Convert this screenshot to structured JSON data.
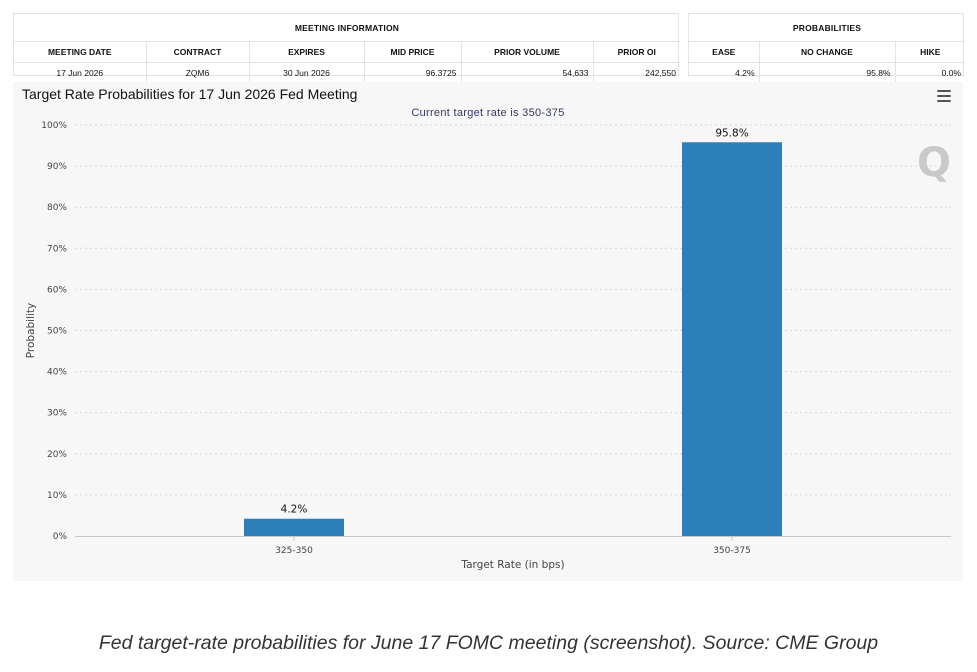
{
  "meeting_info": {
    "title": "MEETING INFORMATION",
    "headers": [
      "MEETING DATE",
      "CONTRACT",
      "EXPIRES",
      "MID PRICE",
      "PRIOR VOLUME",
      "PRIOR OI"
    ],
    "row": [
      "17 Jun 2026",
      "ZQM6",
      "30 Jun 2026",
      "96.3725",
      "54,633",
      "242,550"
    ]
  },
  "probabilities": {
    "title": "PROBABILITIES",
    "headers": [
      "EASE",
      "NO CHANGE",
      "HIKE"
    ],
    "row": [
      "4.2%",
      "95.8%",
      "0.0%"
    ]
  },
  "chart_menu_icon": "hamburger-menu-icon",
  "watermark": "Q",
  "chart_data": {
    "type": "bar",
    "title": "Target Rate Probabilities for 17 Jun 2026 Fed Meeting",
    "subtitle": "Current target rate is 350-375",
    "xlabel": "Target Rate (in bps)",
    "ylabel": "Probability",
    "categories": [
      "325-350",
      "350-375"
    ],
    "values": [
      4.2,
      95.8
    ],
    "data_labels": [
      "4.2%",
      "95.8%"
    ],
    "ylim": [
      0,
      100
    ],
    "yticks": [
      "0%",
      "10%",
      "20%",
      "30%",
      "40%",
      "50%",
      "60%",
      "70%",
      "80%",
      "90%",
      "100%"
    ],
    "grid": true,
    "bar_color": "#2c7fb8"
  },
  "caption": "Fed target-rate probabilities for June 17 FOMC meeting (screenshot). Source: CME Group"
}
